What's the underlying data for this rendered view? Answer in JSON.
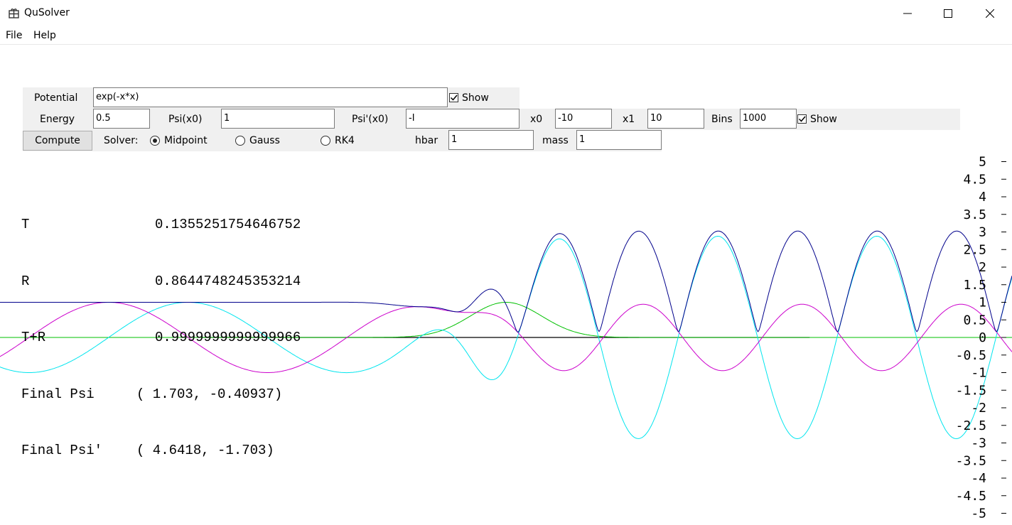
{
  "window": {
    "title": "QuSolver"
  },
  "menu": {
    "file": "File",
    "help": "Help"
  },
  "controls": {
    "potential_label": "Potential",
    "potential_value": "exp(-x*x)",
    "show_label": "Show",
    "potential_show": true,
    "energy_label": "Energy",
    "energy_value": "0.5",
    "psi0_label": "Psi(x0)",
    "psi0_value": "1",
    "dpsi0_label": "Psi'(x0)",
    "dpsi0_value": "-I",
    "x0_label": "x0",
    "x0_value": "-10",
    "x1_label": "x1",
    "x1_value": "10",
    "bins_label": "Bins",
    "bins_value": "1000",
    "bins_show": true,
    "compute_label": "Compute",
    "solver_label": "Solver:",
    "solver_options": [
      "Midpoint",
      "Gauss",
      "RK4"
    ],
    "solver_selected": "Midpoint",
    "hbar_label": "hbar",
    "hbar_value": "1",
    "mass_label": "mass",
    "mass_value": "1"
  },
  "results": [
    {
      "key": "T",
      "value": "0.1355251754646752"
    },
    {
      "key": "R",
      "value": "0.8644748245353214"
    },
    {
      "key": "T+R",
      "value": "0.9999999999999966"
    },
    {
      "key": "Final Psi",
      "value": "( 1.703, -0.40937)"
    },
    {
      "key": "Final Psi'",
      "value": "( 4.6418, -1.703)"
    }
  ],
  "chart_data": {
    "type": "line",
    "x_range": [
      -10,
      10
    ],
    "ylim": [
      -5,
      5
    ],
    "y_ticks": [
      "5",
      "4.5",
      "4",
      "3.5",
      "3",
      "2.5",
      "2",
      "1.5",
      "1",
      "0.5",
      "0",
      "-0.5",
      "-1",
      "-1.5",
      "-2",
      "-2.5",
      "-3",
      "-3.5",
      "-4",
      "-4.5",
      "-5"
    ],
    "energy": 0.5,
    "transmission_x": 1.7,
    "colors": {
      "abs": "#00008b",
      "real": "#00e5ee",
      "imag": "#cc00cc",
      "potential": "#00c000",
      "energy_line": "#000000",
      "axis": "#33dd33"
    }
  }
}
